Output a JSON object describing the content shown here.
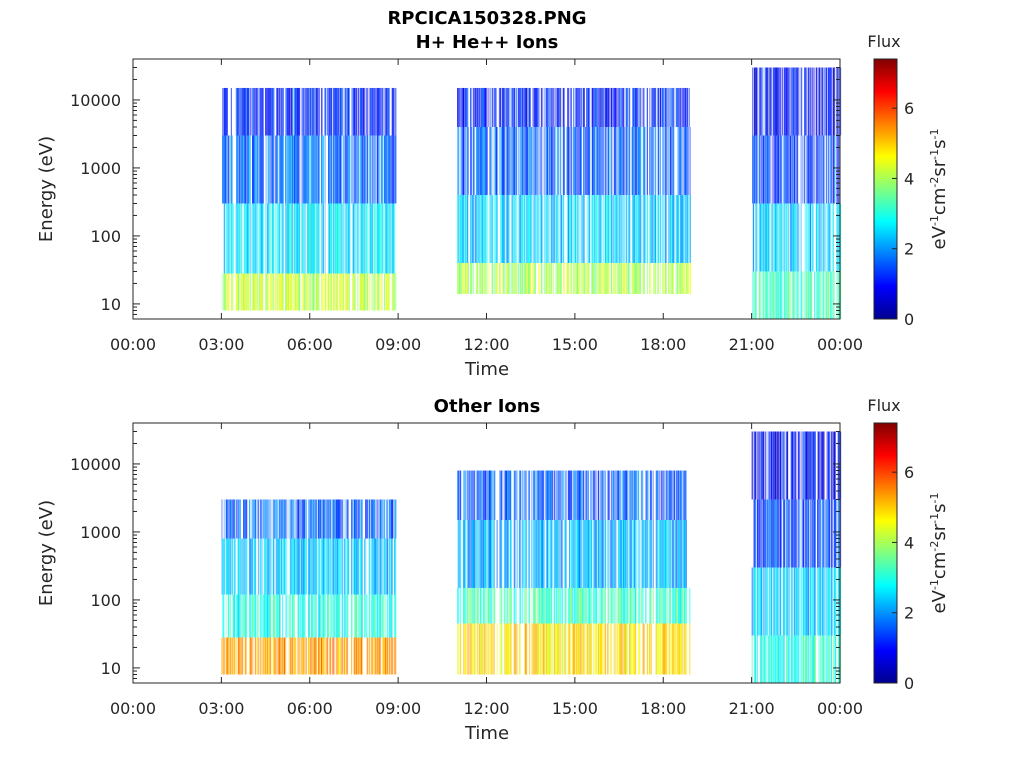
{
  "figure": {
    "title": "RPCICA150328.PNG"
  },
  "chart_data": [
    {
      "type": "heatmap",
      "title": "H+ He++ Ions",
      "xlabel": "Time",
      "ylabel": "Energy (eV)",
      "x_ticks": [
        "00:00",
        "03:00",
        "06:00",
        "09:00",
        "12:00",
        "15:00",
        "18:00",
        "21:00",
        "00:00"
      ],
      "xlim_hours": [
        0,
        24
      ],
      "y_scale": "log",
      "y_ticks": [
        "10",
        "100",
        "1000",
        "10000"
      ],
      "ylim": [
        6,
        40000
      ],
      "colorbar": {
        "title": "Flux",
        "label": "eV-1cm-2sr-1s-1",
        "ticks": [
          "0",
          "2",
          "4",
          "6"
        ],
        "range": [
          0,
          7.4
        ],
        "colormap": "jet"
      },
      "data_intervals_hours": [
        [
          3.0,
          8.9
        ],
        [
          11.0,
          18.9
        ],
        [
          21.0,
          24.0
        ]
      ],
      "spectra": [
        {
          "hours": [
            3.0,
            8.9
          ],
          "energy_eV": [
            [
              8,
              28
            ],
            [
              28,
              300
            ],
            [
              300,
              3000
            ],
            [
              3000,
              15000
            ]
          ],
          "flux": [
            4.2,
            2.6,
            1.7,
            1.2
          ]
        },
        {
          "hours": [
            11.0,
            18.9
          ],
          "energy_eV": [
            [
              14,
              40
            ],
            [
              40,
              400
            ],
            [
              400,
              4000
            ],
            [
              4000,
              15000
            ]
          ],
          "flux": [
            4.0,
            2.4,
            1.6,
            1.1
          ]
        },
        {
          "hours": [
            21.0,
            24.0
          ],
          "energy_eV": [
            [
              6,
              30
            ],
            [
              30,
              300
            ],
            [
              300,
              3000
            ],
            [
              3000,
              30000
            ]
          ],
          "flux": [
            3.2,
            2.4,
            1.4,
            0.9
          ]
        }
      ]
    },
    {
      "type": "heatmap",
      "title": "Other Ions",
      "xlabel": "Time",
      "ylabel": "Energy (eV)",
      "x_ticks": [
        "00:00",
        "03:00",
        "06:00",
        "09:00",
        "12:00",
        "15:00",
        "18:00",
        "21:00",
        "00:00"
      ],
      "xlim_hours": [
        0,
        24
      ],
      "y_scale": "log",
      "y_ticks": [
        "10",
        "100",
        "1000",
        "10000"
      ],
      "ylim": [
        6,
        40000
      ],
      "colorbar": {
        "title": "Flux",
        "label": "eV-1cm-2sr-1s-1",
        "ticks": [
          "0",
          "2",
          "4",
          "6"
        ],
        "range": [
          0,
          7.4
        ],
        "colormap": "jet"
      },
      "data_intervals_hours": [
        [
          3.0,
          8.9
        ],
        [
          11.0,
          18.9
        ],
        [
          21.0,
          24.0
        ]
      ],
      "spectra": [
        {
          "hours": [
            3.0,
            8.9
          ],
          "energy_eV": [
            [
              8,
              28
            ],
            [
              28,
              120
            ],
            [
              120,
              800
            ],
            [
              800,
              3000
            ]
          ],
          "flux": [
            5.3,
            3.0,
            2.3,
            1.6
          ]
        },
        {
          "hours": [
            11.0,
            18.9
          ],
          "energy_eV": [
            [
              8,
              45
            ],
            [
              45,
              150
            ],
            [
              150,
              1500
            ],
            [
              1500,
              8000
            ]
          ],
          "flux": [
            4.8,
            3.2,
            2.2,
            1.6
          ]
        },
        {
          "hours": [
            21.0,
            24.0
          ],
          "energy_eV": [
            [
              6,
              30
            ],
            [
              30,
              300
            ],
            [
              300,
              3000
            ],
            [
              3000,
              30000
            ]
          ],
          "flux": [
            3.0,
            2.4,
            1.4,
            0.9
          ]
        }
      ]
    }
  ]
}
